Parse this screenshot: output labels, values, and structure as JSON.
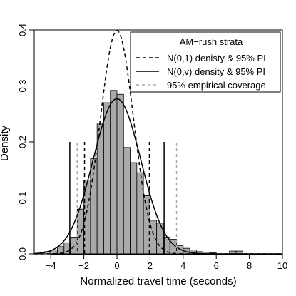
{
  "chart_data": {
    "type": "histogram",
    "xlabel": "Normalized travel time (seconds)",
    "ylabel": "Density",
    "xlim": [
      -5,
      10
    ],
    "ylim": [
      0,
      0.4
    ],
    "x_ticks": [
      -4,
      -2,
      0,
      2,
      4,
      6,
      8,
      10
    ],
    "y_ticks": [
      0.0,
      0.1,
      0.2,
      0.3,
      0.4
    ],
    "histogram": {
      "bin_width": 0.4,
      "fill": "#a9a9a9",
      "bins": [
        {
          "x0": -4.4,
          "x1": -4.0,
          "density": 0.004
        },
        {
          "x0": -4.0,
          "x1": -3.6,
          "density": 0.007
        },
        {
          "x0": -3.6,
          "x1": -3.2,
          "density": 0.013
        },
        {
          "x0": -3.2,
          "x1": -2.8,
          "density": 0.02
        },
        {
          "x0": -2.8,
          "x1": -2.4,
          "density": 0.03
        },
        {
          "x0": -2.4,
          "x1": -2.0,
          "density": 0.08
        },
        {
          "x0": -2.0,
          "x1": -1.6,
          "density": 0.132
        },
        {
          "x0": -1.6,
          "x1": -1.2,
          "density": 0.17
        },
        {
          "x0": -1.2,
          "x1": -0.8,
          "density": 0.232
        },
        {
          "x0": -0.8,
          "x1": -0.4,
          "density": 0.27
        },
        {
          "x0": -0.4,
          "x1": 0.0,
          "density": 0.292
        },
        {
          "x0": 0.0,
          "x1": 0.4,
          "density": 0.285
        },
        {
          "x0": 0.4,
          "x1": 0.8,
          "density": 0.19
        },
        {
          "x0": 0.8,
          "x1": 1.2,
          "density": 0.163
        },
        {
          "x0": 1.2,
          "x1": 1.6,
          "density": 0.145
        },
        {
          "x0": 1.6,
          "x1": 2.0,
          "density": 0.104
        },
        {
          "x0": 2.0,
          "x1": 2.4,
          "density": 0.06
        },
        {
          "x0": 2.4,
          "x1": 2.8,
          "density": 0.055
        },
        {
          "x0": 2.8,
          "x1": 3.2,
          "density": 0.03
        },
        {
          "x0": 3.2,
          "x1": 3.6,
          "density": 0.026
        },
        {
          "x0": 3.6,
          "x1": 4.0,
          "density": 0.015
        },
        {
          "x0": 4.0,
          "x1": 4.4,
          "density": 0.01
        },
        {
          "x0": 4.4,
          "x1": 4.8,
          "density": 0.007
        },
        {
          "x0": 4.8,
          "x1": 5.2,
          "density": 0.004
        },
        {
          "x0": 5.2,
          "x1": 5.6,
          "density": 0.003
        },
        {
          "x0": 5.6,
          "x1": 6.0,
          "density": 0.002
        },
        {
          "x0": 6.8,
          "x1": 7.2,
          "density": 0.005
        },
        {
          "x0": 7.2,
          "x1": 7.6,
          "density": 0.005
        }
      ]
    },
    "curves": [
      {
        "name": "N(0,1) denisty & 95% PI",
        "mean": 0,
        "sd": 1,
        "style": "dashed",
        "color": "#000000"
      },
      {
        "name": "N(0,v) density & 95% PI",
        "mean": 0,
        "sd": 1.44,
        "style": "solid",
        "color": "#000000"
      }
    ],
    "interval_lines": [
      {
        "series": "N(0,1) denisty & 95% PI",
        "x": -1.96,
        "y_top": 0.2,
        "style": "dashed",
        "color": "#000000"
      },
      {
        "series": "N(0,1) denisty & 95% PI",
        "x": 1.96,
        "y_top": 0.2,
        "style": "dashed",
        "color": "#000000"
      },
      {
        "series": "N(0,v) density & 95% PI",
        "x": -2.85,
        "y_top": 0.2,
        "style": "solid",
        "color": "#000000"
      },
      {
        "series": "N(0,v) density & 95% PI",
        "x": 2.85,
        "y_top": 0.2,
        "style": "solid",
        "color": "#000000"
      },
      {
        "series": "95% empirical coverage",
        "x": -2.4,
        "y_top": 0.2,
        "style": "dashed",
        "color": "#a8a8a8"
      },
      {
        "series": "95% empirical coverage",
        "x": 3.6,
        "y_top": 0.2,
        "style": "dashed",
        "color": "#a8a8a8"
      }
    ],
    "legend": {
      "title": "AM−rush strata",
      "position": "top-right",
      "entries": [
        {
          "label": "N(0,1) denisty & 95% PI",
          "style": "dashed",
          "color": "#000000"
        },
        {
          "label": "N(0,v) density & 95% PI",
          "style": "solid",
          "color": "#000000"
        },
        {
          "label": "95% empirical coverage",
          "style": "dashed",
          "color": "#a8a8a8"
        }
      ]
    },
    "grid": false
  }
}
